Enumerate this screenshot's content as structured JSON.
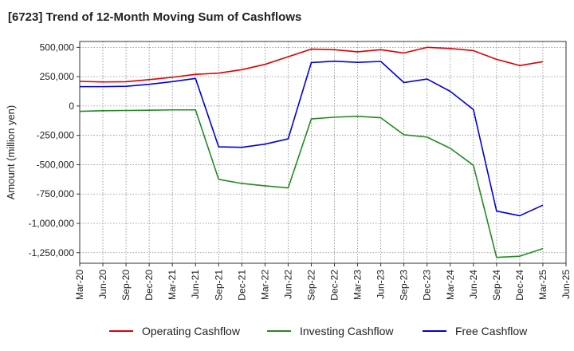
{
  "title": "[6723]  Trend of 12-Month Moving Sum of Cashflows",
  "chart_data": {
    "type": "line",
    "title": "[6723]  Trend of 12-Month Moving Sum of Cashflows",
    "ylabel": "Amount (million yen)",
    "xlabel": "",
    "ylim": [
      -1340000,
      550000
    ],
    "yticks": [
      500000,
      250000,
      0,
      -250000,
      -500000,
      -750000,
      -1000000,
      -1250000
    ],
    "ytick_labels": [
      "500,000",
      "250,000",
      "0",
      "-250,000",
      "-500,000",
      "-750,000",
      "-1,000,000",
      "-1,250,000"
    ],
    "xtick_labels": [
      "Mar-20",
      "Jun-20",
      "Sep-20",
      "Dec-20",
      "Mar-21",
      "Jun-21",
      "Sep-21",
      "Dec-21",
      "Mar-22",
      "Jun-22",
      "Sep-22",
      "Dec-22",
      "Mar-23",
      "Jun-23",
      "Sep-23",
      "Dec-23",
      "Mar-24",
      "Jun-24",
      "Sep-24",
      "Dec-24",
      "Mar-25",
      "Jun-25"
    ],
    "x": [
      "Mar-20",
      "Jun-20",
      "Sep-20",
      "Dec-20",
      "Mar-21",
      "Jun-21",
      "Sep-21",
      "Dec-21",
      "Mar-22",
      "Jun-22",
      "Sep-22",
      "Dec-22",
      "Mar-23",
      "Jun-23",
      "Sep-23",
      "Dec-23",
      "Mar-24",
      "Jun-24",
      "Sep-24",
      "Dec-24",
      "Mar-25"
    ],
    "grid": true,
    "legend_position": "bottom",
    "series": [
      {
        "name": "Operating Cashflow",
        "color": "#e00000",
        "values": [
          210000,
          205000,
          207000,
          225000,
          245000,
          270000,
          280000,
          310000,
          355000,
          420000,
          485000,
          480000,
          462000,
          480000,
          452000,
          500000,
          490000,
          472000,
          398000,
          345000,
          378000
        ]
      },
      {
        "name": "Investing Cashflow",
        "color": "#228b22",
        "values": [
          -45000,
          -40000,
          -38000,
          -36000,
          -33000,
          -33000,
          -625000,
          -660000,
          -680000,
          -698000,
          -110000,
          -95000,
          -88000,
          -100000,
          -245000,
          -265000,
          -360000,
          -505000,
          -1290000,
          -1280000,
          -1215000
        ]
      },
      {
        "name": "Free Cashflow",
        "color": "#0000dd",
        "values": [
          165000,
          165000,
          168000,
          185000,
          208000,
          235000,
          -348000,
          -352000,
          -325000,
          -280000,
          370000,
          382000,
          372000,
          380000,
          200000,
          230000,
          125000,
          -30000,
          -895000,
          -935000,
          -845000
        ]
      }
    ]
  }
}
